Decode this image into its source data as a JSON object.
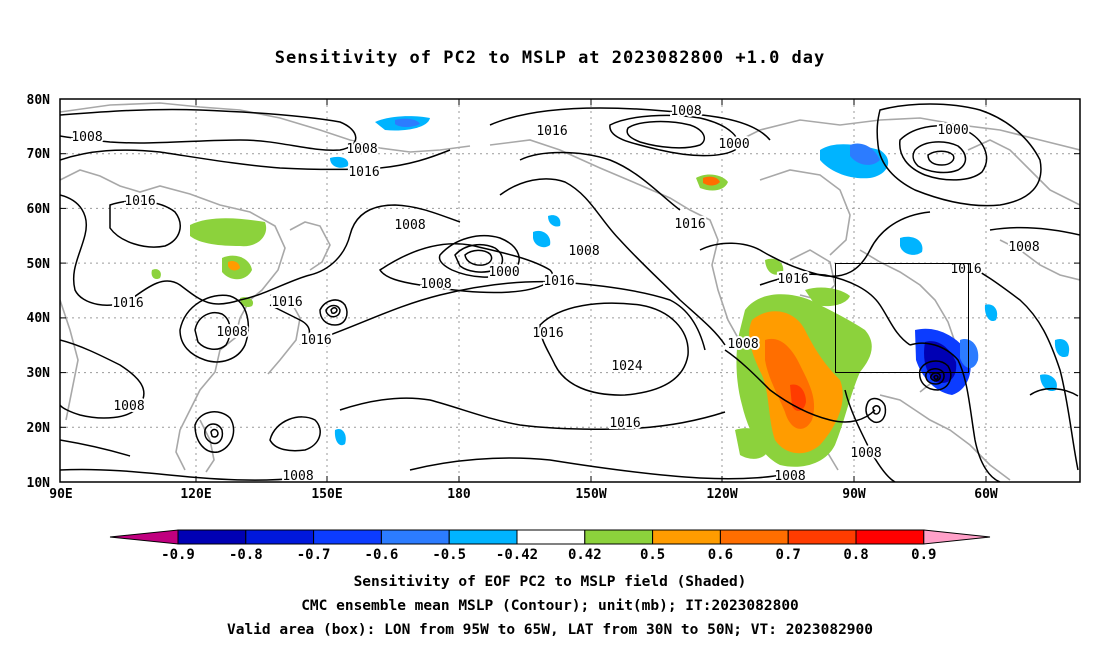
{
  "title": "Sensitivity of PC2 to MSLP at 2023082800 +1.0 day",
  "latitude_labels": [
    "80N",
    "70N",
    "60N",
    "50N",
    "40N",
    "30N",
    "20N",
    "10N"
  ],
  "longitude_labels": [
    "90E",
    "120E",
    "150E",
    "180",
    "150W",
    "120W",
    "90W",
    "60W"
  ],
  "contour_labels": [
    "1008",
    "1016",
    "1016",
    "1008",
    "1016",
    "1008",
    "1016",
    "1008",
    "1016",
    "1016",
    "1008",
    "1000",
    "1008",
    "1016",
    "1008",
    "1024",
    "1016",
    "1008",
    "1016",
    "1016",
    "1008",
    "1008",
    "1008",
    "1016",
    "1000",
    "1008",
    "1016",
    "1008",
    "1000"
  ],
  "colorbar": {
    "labels": [
      "-0.9",
      "-0.8",
      "-0.7",
      "-0.6",
      "-0.5",
      "-0.42",
      "0.42",
      "0.5",
      "0.6",
      "0.7",
      "0.8",
      "0.9"
    ],
    "colors": [
      "#c0007f",
      "#0000b4",
      "#0018dc",
      "#0c3cff",
      "#2c7cff",
      "#00b4ff",
      "#ffffff",
      "#8cd23c",
      "#ff9c00",
      "#ff6e00",
      "#ff3c00",
      "#ff0000",
      "#ffa0c8"
    ]
  },
  "valid_box": {
    "lon_from": "95W",
    "lon_to": "65W",
    "lat_from": "30N",
    "lat_to": "50N"
  },
  "captions": {
    "line1": "Sensitivity of EOF PC2 to MSLP field (Shaded)",
    "line2": "CMC ensemble mean MSLP (Contour); unit(mb); IT:2023082800",
    "line3": "Valid area (box): LON from 95W to 65W, LAT from 30N to 50N; VT: 2023082900"
  }
}
